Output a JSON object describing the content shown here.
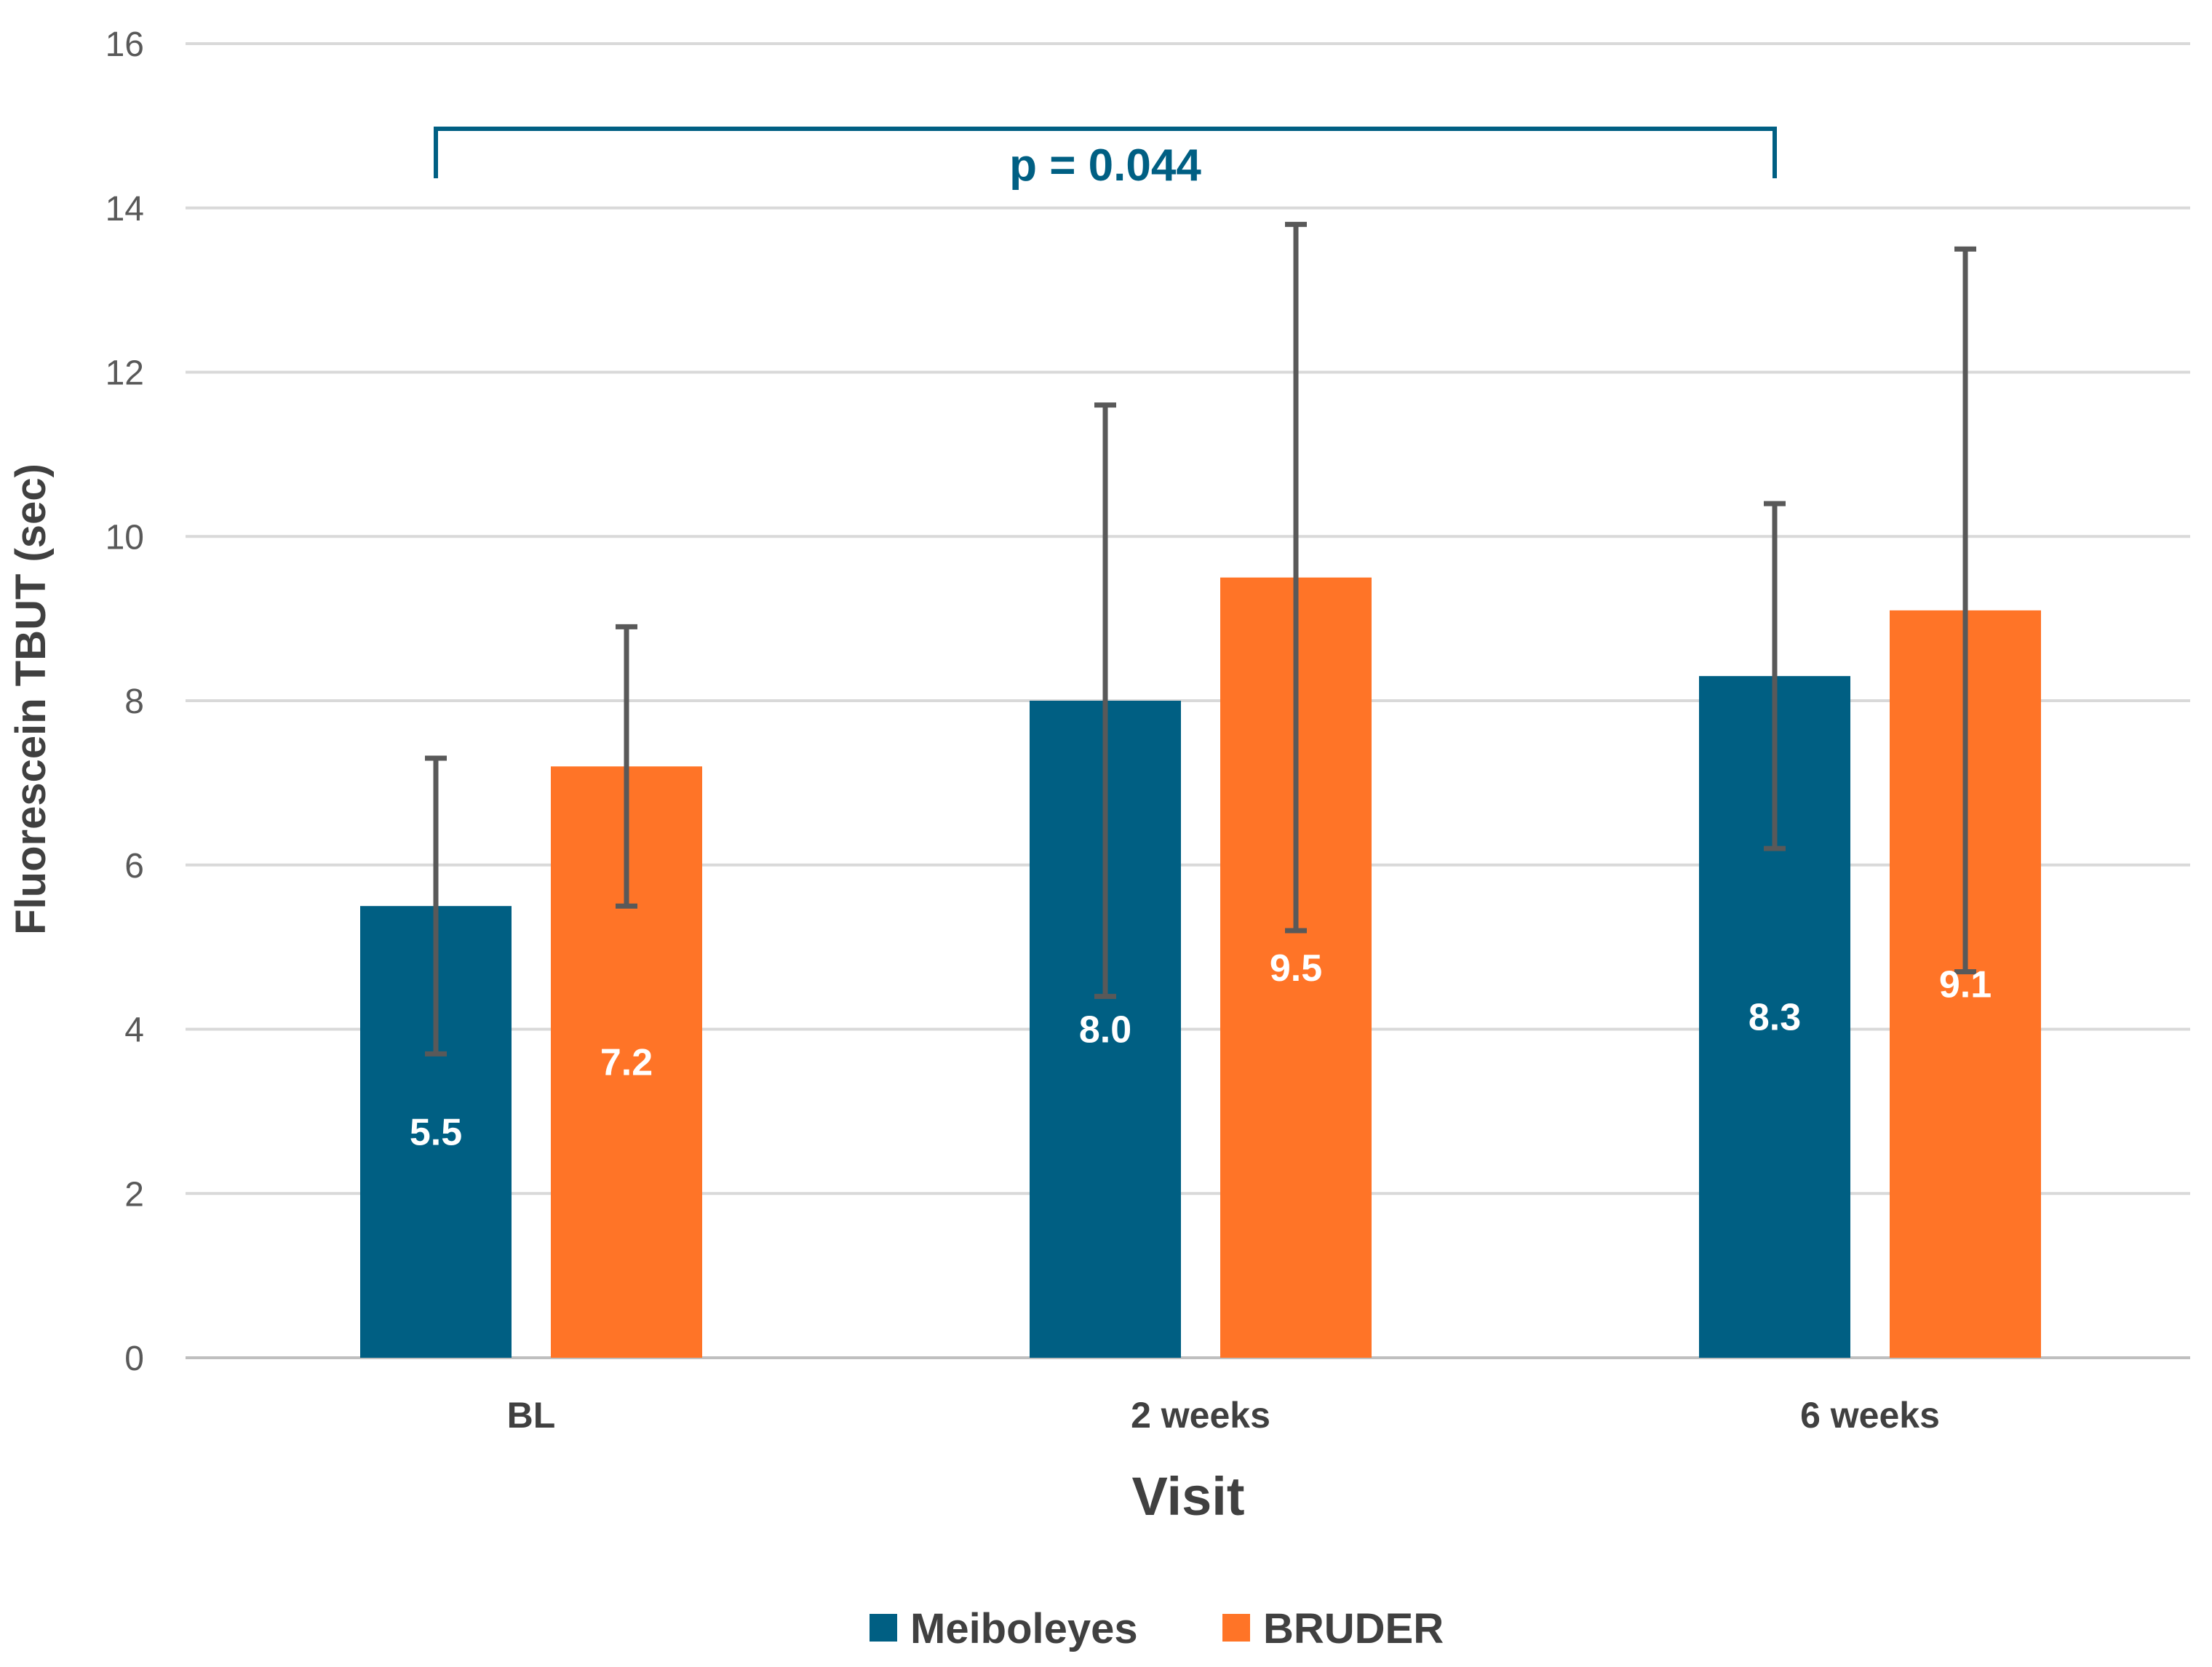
{
  "chart_data": {
    "type": "bar",
    "title": "",
    "xlabel": "Visit",
    "ylabel": "Fluorescein TBUT (sec)",
    "ylim": [
      0,
      16
    ],
    "yticks": [
      0,
      2,
      4,
      6,
      8,
      10,
      12,
      14,
      16
    ],
    "grid": true,
    "categories": [
      "BL",
      "2 weeks",
      "6 weeks"
    ],
    "series": [
      {
        "name": "Meiboleyes",
        "color": "#005f83",
        "values": [
          5.5,
          8.0,
          8.3
        ],
        "labels": [
          "5.5",
          "8.0",
          "8.3"
        ],
        "error_low": [
          3.7,
          4.4,
          6.2
        ],
        "error_high": [
          7.3,
          11.6,
          10.4
        ]
      },
      {
        "name": "BRUDER",
        "color": "#ff7427",
        "values": [
          7.2,
          9.5,
          9.1
        ],
        "labels": [
          "7.2",
          "9.5",
          "9.1"
        ],
        "error_low": [
          5.5,
          5.2,
          4.7
        ],
        "error_high": [
          8.9,
          13.8,
          13.5
        ]
      }
    ],
    "annotation": {
      "text": "p = 0.044",
      "color": "#005f83",
      "from_category": "BL",
      "to_category": "6 weeks",
      "series": "Meiboleyes"
    },
    "legend_position": "bottom-center"
  }
}
